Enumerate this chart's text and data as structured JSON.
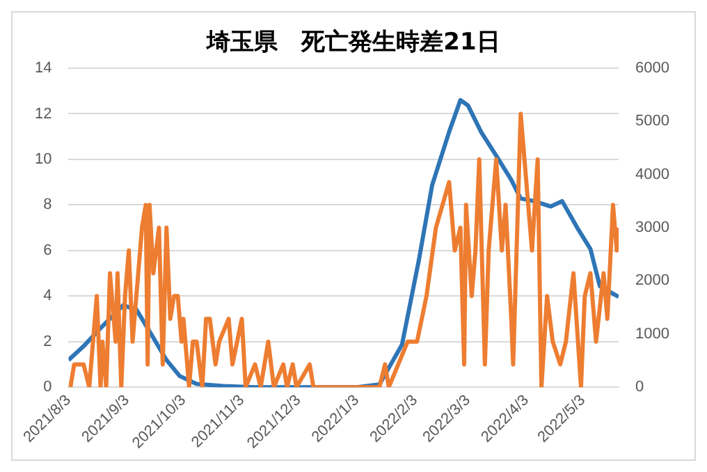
{
  "chart_data": {
    "type": "line",
    "title": "埼玉県　死亡発生時差21日",
    "xlim": [
      "2021-08-03",
      "2022-05-22"
    ],
    "xticks": [
      {
        "value": "2021-08-03",
        "label": "2021/8/3"
      },
      {
        "value": "2021-09-03",
        "label": "2021/9/3"
      },
      {
        "value": "2021-10-03",
        "label": "2021/10/3"
      },
      {
        "value": "2021-11-03",
        "label": "2021/11/3"
      },
      {
        "value": "2021-12-03",
        "label": "2021/12/3"
      },
      {
        "value": "2022-01-03",
        "label": "2022/1/3"
      },
      {
        "value": "2022-02-03",
        "label": "2022/2/3"
      },
      {
        "value": "2022-03-03",
        "label": "2022/3/3"
      },
      {
        "value": "2022-04-03",
        "label": "2022/4/3"
      },
      {
        "value": "2022-05-03",
        "label": "2022/5/3"
      }
    ],
    "ylim": [
      0,
      14
    ],
    "yticks": [
      0,
      2,
      4,
      6,
      8,
      10,
      12,
      14
    ],
    "y2lim": [
      0,
      6000
    ],
    "y2ticks": [
      0,
      1000,
      2000,
      3000,
      4000,
      5000,
      6000
    ],
    "grid": "y",
    "legend": false,
    "marker": "none",
    "line_style": "solid",
    "series": [
      {
        "color": "#ed7d31",
        "x": [
          "2021-08-04",
          "2021-08-06",
          "2021-08-11",
          "2021-08-14",
          "2021-08-18",
          "2021-08-20",
          "2021-08-21",
          "2021-08-23",
          "2021-08-25",
          "2021-08-28",
          "2021-08-29",
          "2021-08-31",
          "2021-09-02",
          "2021-09-04",
          "2021-09-06",
          "2021-09-08",
          "2021-09-11",
          "2021-09-13",
          "2021-09-14",
          "2021-09-15",
          "2021-09-17",
          "2021-09-20",
          "2021-09-22",
          "2021-09-24",
          "2021-09-26",
          "2021-09-28",
          "2021-09-30",
          "2021-10-02",
          "2021-10-03",
          "2021-10-06",
          "2021-10-08",
          "2021-10-10",
          "2021-10-13",
          "2021-10-15",
          "2021-10-17",
          "2021-10-20",
          "2021-10-22",
          "2021-10-27",
          "2021-10-29",
          "2021-11-03",
          "2021-11-05",
          "2021-11-10",
          "2021-11-13",
          "2021-11-17",
          "2021-11-20",
          "2021-11-25",
          "2021-11-27",
          "2021-11-30",
          "2021-12-02",
          "2021-12-09",
          "2021-12-11",
          "2021-12-31",
          "2022-01-15",
          "2022-01-18",
          "2022-01-20",
          "2022-01-25",
          "2022-01-30",
          "2022-02-04",
          "2022-02-09",
          "2022-02-14",
          "2022-02-21",
          "2022-02-24",
          "2022-02-27",
          "2022-03-01",
          "2022-03-02",
          "2022-03-05",
          "2022-03-07",
          "2022-03-09",
          "2022-03-12",
          "2022-03-14",
          "2022-03-18",
          "2022-03-21",
          "2022-03-23",
          "2022-03-26",
          "2022-03-27",
          "2022-03-31",
          "2022-04-02",
          "2022-04-06",
          "2022-04-09",
          "2022-04-11",
          "2022-04-14",
          "2022-04-17",
          "2022-04-21",
          "2022-04-24",
          "2022-04-28",
          "2022-05-02",
          "2022-05-04",
          "2022-05-07",
          "2022-05-10",
          "2022-05-14",
          "2022-05-16",
          "2022-05-19",
          "2022-05-21",
          "2022-05-22"
        ],
        "values": [
          0,
          1,
          1,
          0,
          4,
          0,
          2,
          0,
          5,
          2,
          5,
          0,
          4,
          6,
          2,
          4,
          7,
          8,
          1,
          8,
          5,
          7,
          1,
          7,
          3,
          4,
          4,
          2,
          3,
          0,
          2,
          2,
          0,
          3,
          3,
          1,
          2,
          3,
          1,
          3,
          0,
          1,
          0,
          2,
          0,
          1,
          0,
          1,
          0,
          1,
          0,
          0,
          0,
          1,
          0,
          1,
          2,
          2,
          4,
          7,
          9,
          6,
          7,
          1,
          8,
          4,
          6,
          10,
          1,
          6,
          10,
          6,
          8,
          3,
          1,
          12,
          10,
          6,
          10,
          0,
          4,
          2,
          1,
          2,
          5,
          0,
          4,
          5,
          2,
          5,
          3,
          8,
          6,
          7
        ]
      },
      {
        "color": "#2e75b6",
        "axis": "y2",
        "x": [
          "2021-08-03",
          "2021-08-11",
          "2021-08-20",
          "2021-09-01",
          "2021-09-08",
          "2021-09-16",
          "2021-09-24",
          "2021-10-01",
          "2021-10-10",
          "2021-10-24",
          "2021-11-10",
          "2022-01-03",
          "2022-01-15",
          "2022-01-27",
          "2022-02-05",
          "2022-02-12",
          "2022-02-21",
          "2022-02-27",
          "2022-03-03",
          "2022-03-10",
          "2022-03-19",
          "2022-03-26",
          "2022-03-31",
          "2022-04-07",
          "2022-04-16",
          "2022-04-22",
          "2022-04-30",
          "2022-05-07",
          "2022-05-12",
          "2022-05-22"
        ],
        "values": [
          510,
          770,
          1110,
          1540,
          1460,
          990,
          510,
          210,
          60,
          20,
          0,
          0,
          50,
          800,
          2400,
          3800,
          4800,
          5400,
          5300,
          4800,
          4300,
          3900,
          3550,
          3500,
          3400,
          3500,
          3000,
          2600,
          1900,
          1700
        ]
      }
    ]
  }
}
